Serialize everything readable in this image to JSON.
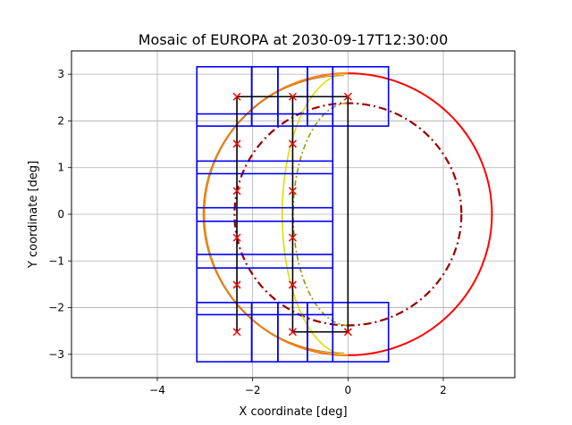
{
  "chart_data": {
    "type": "scatter",
    "title": "Mosaic of EUROPA at 2030-09-17T12:30:00",
    "xlabel": "X coordinate [deg]",
    "ylabel": "Y coordinate [deg]",
    "xlim": [
      -5.8,
      3.5
    ],
    "ylim": [
      -3.5,
      3.5
    ],
    "xticks": [
      -4,
      -2,
      0,
      2
    ],
    "yticks": [
      -3,
      -2,
      -1,
      0,
      1,
      2,
      3
    ],
    "xtick_labels": [
      "−4",
      "−2",
      "0",
      "2"
    ],
    "ytick_labels": [
      "−3",
      "−2",
      "−1",
      "0",
      "1",
      "2",
      "3"
    ],
    "grid": true,
    "colors": {
      "tiles": "#0000ff",
      "path": "#000000",
      "markers": "#ff0000",
      "disk_outline": "#ff0000",
      "inner_circle": "#990000",
      "terminator_dashed": "#999900",
      "terminator_solid": "#dddd00",
      "limb": "#ff8c00"
    },
    "disk": {
      "center": [
        0,
        0
      ],
      "radius": 3.02
    },
    "inner_circle": {
      "center": [
        0,
        0
      ],
      "radius": 2.38
    },
    "limb_arc": {
      "radius": 3.02
    },
    "tiles": [
      {
        "x0": -3.17,
        "x1": -2.02,
        "y0": 1.89,
        "y1": 3.16
      },
      {
        "x0": -2.02,
        "x1": -1.47,
        "y0": 1.89,
        "y1": 3.16
      },
      {
        "x0": -1.47,
        "x1": -0.85,
        "y0": 1.89,
        "y1": 3.16
      },
      {
        "x0": -0.85,
        "x1": -0.32,
        "y0": 1.89,
        "y1": 3.16
      },
      {
        "x0": -0.32,
        "x1": 0.85,
        "y0": 1.89,
        "y1": 3.16
      },
      {
        "x0": -3.17,
        "x1": -0.32,
        "y0": 0.87,
        "y1": 2.15
      },
      {
        "x0": -3.17,
        "x1": -0.32,
        "y0": -0.15,
        "y1": 1.14
      },
      {
        "x0": -3.17,
        "x1": -0.32,
        "y0": -1.15,
        "y1": 0.14
      },
      {
        "x0": -3.17,
        "x1": -0.32,
        "y0": -2.15,
        "y1": -0.86
      },
      {
        "x0": -3.17,
        "x1": -2.02,
        "y0": -3.16,
        "y1": -1.89
      },
      {
        "x0": -2.02,
        "x1": -1.47,
        "y0": -3.16,
        "y1": -1.89
      },
      {
        "x0": -1.47,
        "x1": -0.85,
        "y0": -3.16,
        "y1": -1.89
      },
      {
        "x0": -0.85,
        "x1": -0.32,
        "y0": -3.16,
        "y1": -1.89
      },
      {
        "x0": -0.32,
        "x1": 0.85,
        "y0": -3.16,
        "y1": -1.89
      }
    ],
    "path": [
      [
        -1.16,
        -2.52
      ],
      [
        -1.16,
        2.52
      ],
      [
        0.0,
        2.52
      ],
      [
        0.0,
        -2.52
      ],
      [
        -1.16,
        -2.52
      ]
    ],
    "path_left": [
      [
        -2.33,
        -2.52
      ],
      [
        -2.33,
        2.52
      ],
      [
        -1.16,
        2.52
      ]
    ],
    "points": [
      {
        "x": -2.33,
        "y": 2.52
      },
      {
        "x": -2.33,
        "y": 1.51
      },
      {
        "x": -2.33,
        "y": 0.5
      },
      {
        "x": -2.33,
        "y": -0.5
      },
      {
        "x": -2.33,
        "y": -1.51
      },
      {
        "x": -2.33,
        "y": -2.52
      },
      {
        "x": -1.16,
        "y": 2.52
      },
      {
        "x": -1.16,
        "y": 1.51
      },
      {
        "x": -1.16,
        "y": 0.5
      },
      {
        "x": -1.16,
        "y": -0.5
      },
      {
        "x": -1.16,
        "y": -1.51
      },
      {
        "x": -1.16,
        "y": -2.52
      },
      {
        "x": 0.0,
        "y": 2.52
      },
      {
        "x": 0.0,
        "y": -2.52
      }
    ]
  }
}
